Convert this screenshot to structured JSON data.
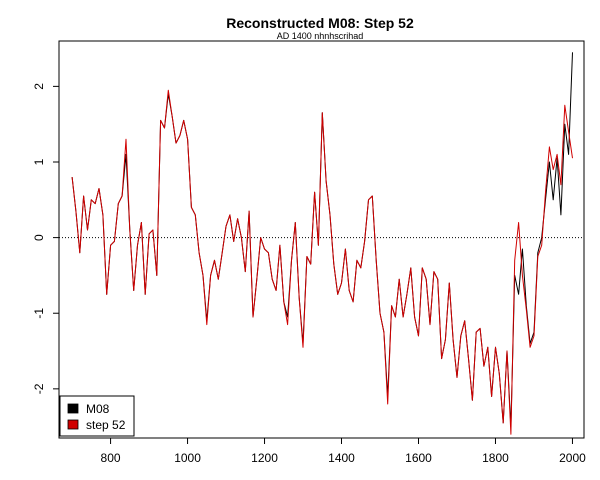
{
  "chart_data": {
    "type": "line",
    "title": "Reconstructed M08: Step 52",
    "subtitle": "AD 1400 nhnhscrihad",
    "xlabel": "",
    "ylabel": "",
    "xlim": [
      666,
      2030
    ],
    "ylim": [
      -2.65,
      2.6
    ],
    "x_ticks": [
      800,
      1000,
      1200,
      1400,
      1600,
      1800,
      2000
    ],
    "x_tick_labels": [
      "800",
      "1000",
      "1200",
      "1400",
      "1600",
      "1800",
      "2000"
    ],
    "y_ticks": [
      -2,
      -1,
      0,
      1,
      2
    ],
    "y_tick_labels": [
      "-2",
      "-1",
      "0",
      "1",
      "2"
    ],
    "reference_line": {
      "y": 0,
      "style": "dotted"
    },
    "legend": {
      "position": "bottom-left",
      "entries": [
        "M08",
        "step 52"
      ]
    },
    "series": [
      {
        "name": "M08",
        "color": "#000000",
        "x": [
          700,
          710,
          720,
          730,
          740,
          750,
          760,
          770,
          780,
          790,
          800,
          810,
          820,
          830,
          840,
          850,
          860,
          870,
          880,
          890,
          900,
          910,
          920,
          930,
          940,
          950,
          960,
          970,
          980,
          990,
          1000,
          1010,
          1020,
          1030,
          1040,
          1050,
          1060,
          1070,
          1080,
          1090,
          1100,
          1110,
          1120,
          1130,
          1140,
          1150,
          1160,
          1170,
          1180,
          1190,
          1200,
          1210,
          1220,
          1230,
          1240,
          1250,
          1260,
          1270,
          1280,
          1290,
          1300,
          1310,
          1320,
          1330,
          1340,
          1350,
          1360,
          1370,
          1380,
          1390,
          1400,
          1410,
          1420,
          1430,
          1440,
          1450,
          1460,
          1470,
          1480,
          1490,
          1500,
          1510,
          1520,
          1530,
          1540,
          1550,
          1560,
          1570,
          1580,
          1590,
          1600,
          1610,
          1620,
          1630,
          1640,
          1650,
          1660,
          1670,
          1680,
          1690,
          1700,
          1710,
          1720,
          1730,
          1740,
          1750,
          1760,
          1770,
          1780,
          1790,
          1800,
          1810,
          1820,
          1830,
          1840,
          1850,
          1860,
          1870,
          1880,
          1890,
          1900,
          1910,
          1920,
          1930,
          1940,
          1950,
          1960,
          1970,
          1980,
          1990,
          2000
        ],
        "y": [
          0.8,
          0.35,
          -0.2,
          0.55,
          0.1,
          0.5,
          0.45,
          0.65,
          0.3,
          -0.75,
          -0.1,
          -0.05,
          0.45,
          0.55,
          1.1,
          0.1,
          -0.7,
          -0.1,
          0.2,
          -0.75,
          0.05,
          0.1,
          -0.5,
          1.55,
          1.45,
          1.9,
          1.6,
          1.25,
          1.35,
          1.55,
          1.3,
          0.4,
          0.3,
          -0.2,
          -0.5,
          -1.1,
          -0.5,
          -0.3,
          -0.55,
          -0.2,
          0.15,
          0.3,
          -0.05,
          0.25,
          0.0,
          -0.45,
          0.35,
          -1.05,
          -0.55,
          0.0,
          -0.15,
          -0.2,
          -0.55,
          -0.7,
          -0.1,
          -0.85,
          -1.05,
          -0.3,
          0.2,
          -0.8,
          -1.4,
          -0.25,
          -0.35,
          0.6,
          -0.1,
          1.65,
          0.75,
          0.3,
          -0.35,
          -0.75,
          -0.6,
          -0.15,
          -0.7,
          -0.85,
          -0.3,
          -0.4,
          -0.05,
          0.5,
          0.55,
          -0.3,
          -1.0,
          -1.25,
          -2.1,
          -0.9,
          -1.05,
          -0.55,
          -1.05,
          -0.75,
          -0.4,
          -1.05,
          -1.3,
          -0.4,
          -0.55,
          -1.15,
          -0.45,
          -0.55,
          -1.6,
          -1.35,
          -0.6,
          -1.35,
          -1.85,
          -1.3,
          -1.1,
          -1.6,
          -2.15,
          -1.25,
          -1.2,
          -1.7,
          -1.45,
          -2.1,
          -1.45,
          -1.8,
          -2.45,
          -1.5,
          -2.5,
          -0.5,
          -0.75,
          -0.15,
          -0.9,
          -1.4,
          -1.25,
          -0.2,
          0.0,
          0.5,
          1.0,
          0.5,
          1.05,
          0.3,
          1.5,
          1.1,
          2.45
        ]
      },
      {
        "name": "step 52",
        "color": "#d00000",
        "x": [
          700,
          710,
          720,
          730,
          740,
          750,
          760,
          770,
          780,
          790,
          800,
          810,
          820,
          830,
          840,
          850,
          860,
          870,
          880,
          890,
          900,
          910,
          920,
          930,
          940,
          950,
          960,
          970,
          980,
          990,
          1000,
          1010,
          1020,
          1030,
          1040,
          1050,
          1060,
          1070,
          1080,
          1090,
          1100,
          1110,
          1120,
          1130,
          1140,
          1150,
          1160,
          1170,
          1180,
          1190,
          1200,
          1210,
          1220,
          1230,
          1240,
          1250,
          1260,
          1270,
          1280,
          1290,
          1300,
          1310,
          1320,
          1330,
          1340,
          1350,
          1360,
          1370,
          1380,
          1390,
          1400,
          1410,
          1420,
          1430,
          1440,
          1450,
          1460,
          1470,
          1480,
          1490,
          1500,
          1510,
          1520,
          1530,
          1540,
          1550,
          1560,
          1570,
          1580,
          1590,
          1600,
          1610,
          1620,
          1630,
          1640,
          1650,
          1660,
          1670,
          1680,
          1690,
          1700,
          1710,
          1720,
          1730,
          1740,
          1750,
          1760,
          1770,
          1780,
          1790,
          1800,
          1810,
          1820,
          1830,
          1840,
          1850,
          1860,
          1870,
          1880,
          1890,
          1900,
          1910,
          1920,
          1930,
          1940,
          1950,
          1960,
          1970,
          1980,
          1990,
          2000
        ],
        "y": [
          0.8,
          0.35,
          -0.2,
          0.55,
          0.1,
          0.5,
          0.45,
          0.65,
          0.3,
          -0.75,
          -0.1,
          -0.05,
          0.45,
          0.55,
          1.3,
          0.1,
          -0.7,
          -0.1,
          0.2,
          -0.75,
          0.05,
          0.1,
          -0.5,
          1.55,
          1.45,
          1.95,
          1.6,
          1.25,
          1.35,
          1.55,
          1.3,
          0.4,
          0.3,
          -0.2,
          -0.5,
          -1.15,
          -0.5,
          -0.3,
          -0.55,
          -0.2,
          0.15,
          0.3,
          -0.05,
          0.25,
          0.0,
          -0.45,
          0.35,
          -1.05,
          -0.55,
          0.0,
          -0.15,
          -0.2,
          -0.55,
          -0.7,
          -0.1,
          -0.85,
          -1.15,
          -0.3,
          0.2,
          -0.8,
          -1.45,
          -0.25,
          -0.35,
          0.6,
          -0.1,
          1.65,
          0.75,
          0.3,
          -0.35,
          -0.75,
          -0.6,
          -0.15,
          -0.7,
          -0.85,
          -0.3,
          -0.4,
          -0.05,
          0.5,
          0.55,
          -0.3,
          -1.0,
          -1.25,
          -2.2,
          -0.9,
          -1.05,
          -0.55,
          -1.05,
          -0.75,
          -0.4,
          -1.05,
          -1.3,
          -0.4,
          -0.55,
          -1.15,
          -0.45,
          -0.55,
          -1.6,
          -1.35,
          -0.6,
          -1.35,
          -1.85,
          -1.3,
          -1.1,
          -1.6,
          -2.15,
          -1.25,
          -1.2,
          -1.7,
          -1.45,
          -2.1,
          -1.45,
          -1.8,
          -2.45,
          -1.5,
          -2.6,
          -0.3,
          0.2,
          -0.5,
          -0.95,
          -1.45,
          -1.3,
          -0.25,
          -0.1,
          0.6,
          1.2,
          0.9,
          1.1,
          0.7,
          1.75,
          1.4,
          1.05
        ]
      }
    ]
  }
}
